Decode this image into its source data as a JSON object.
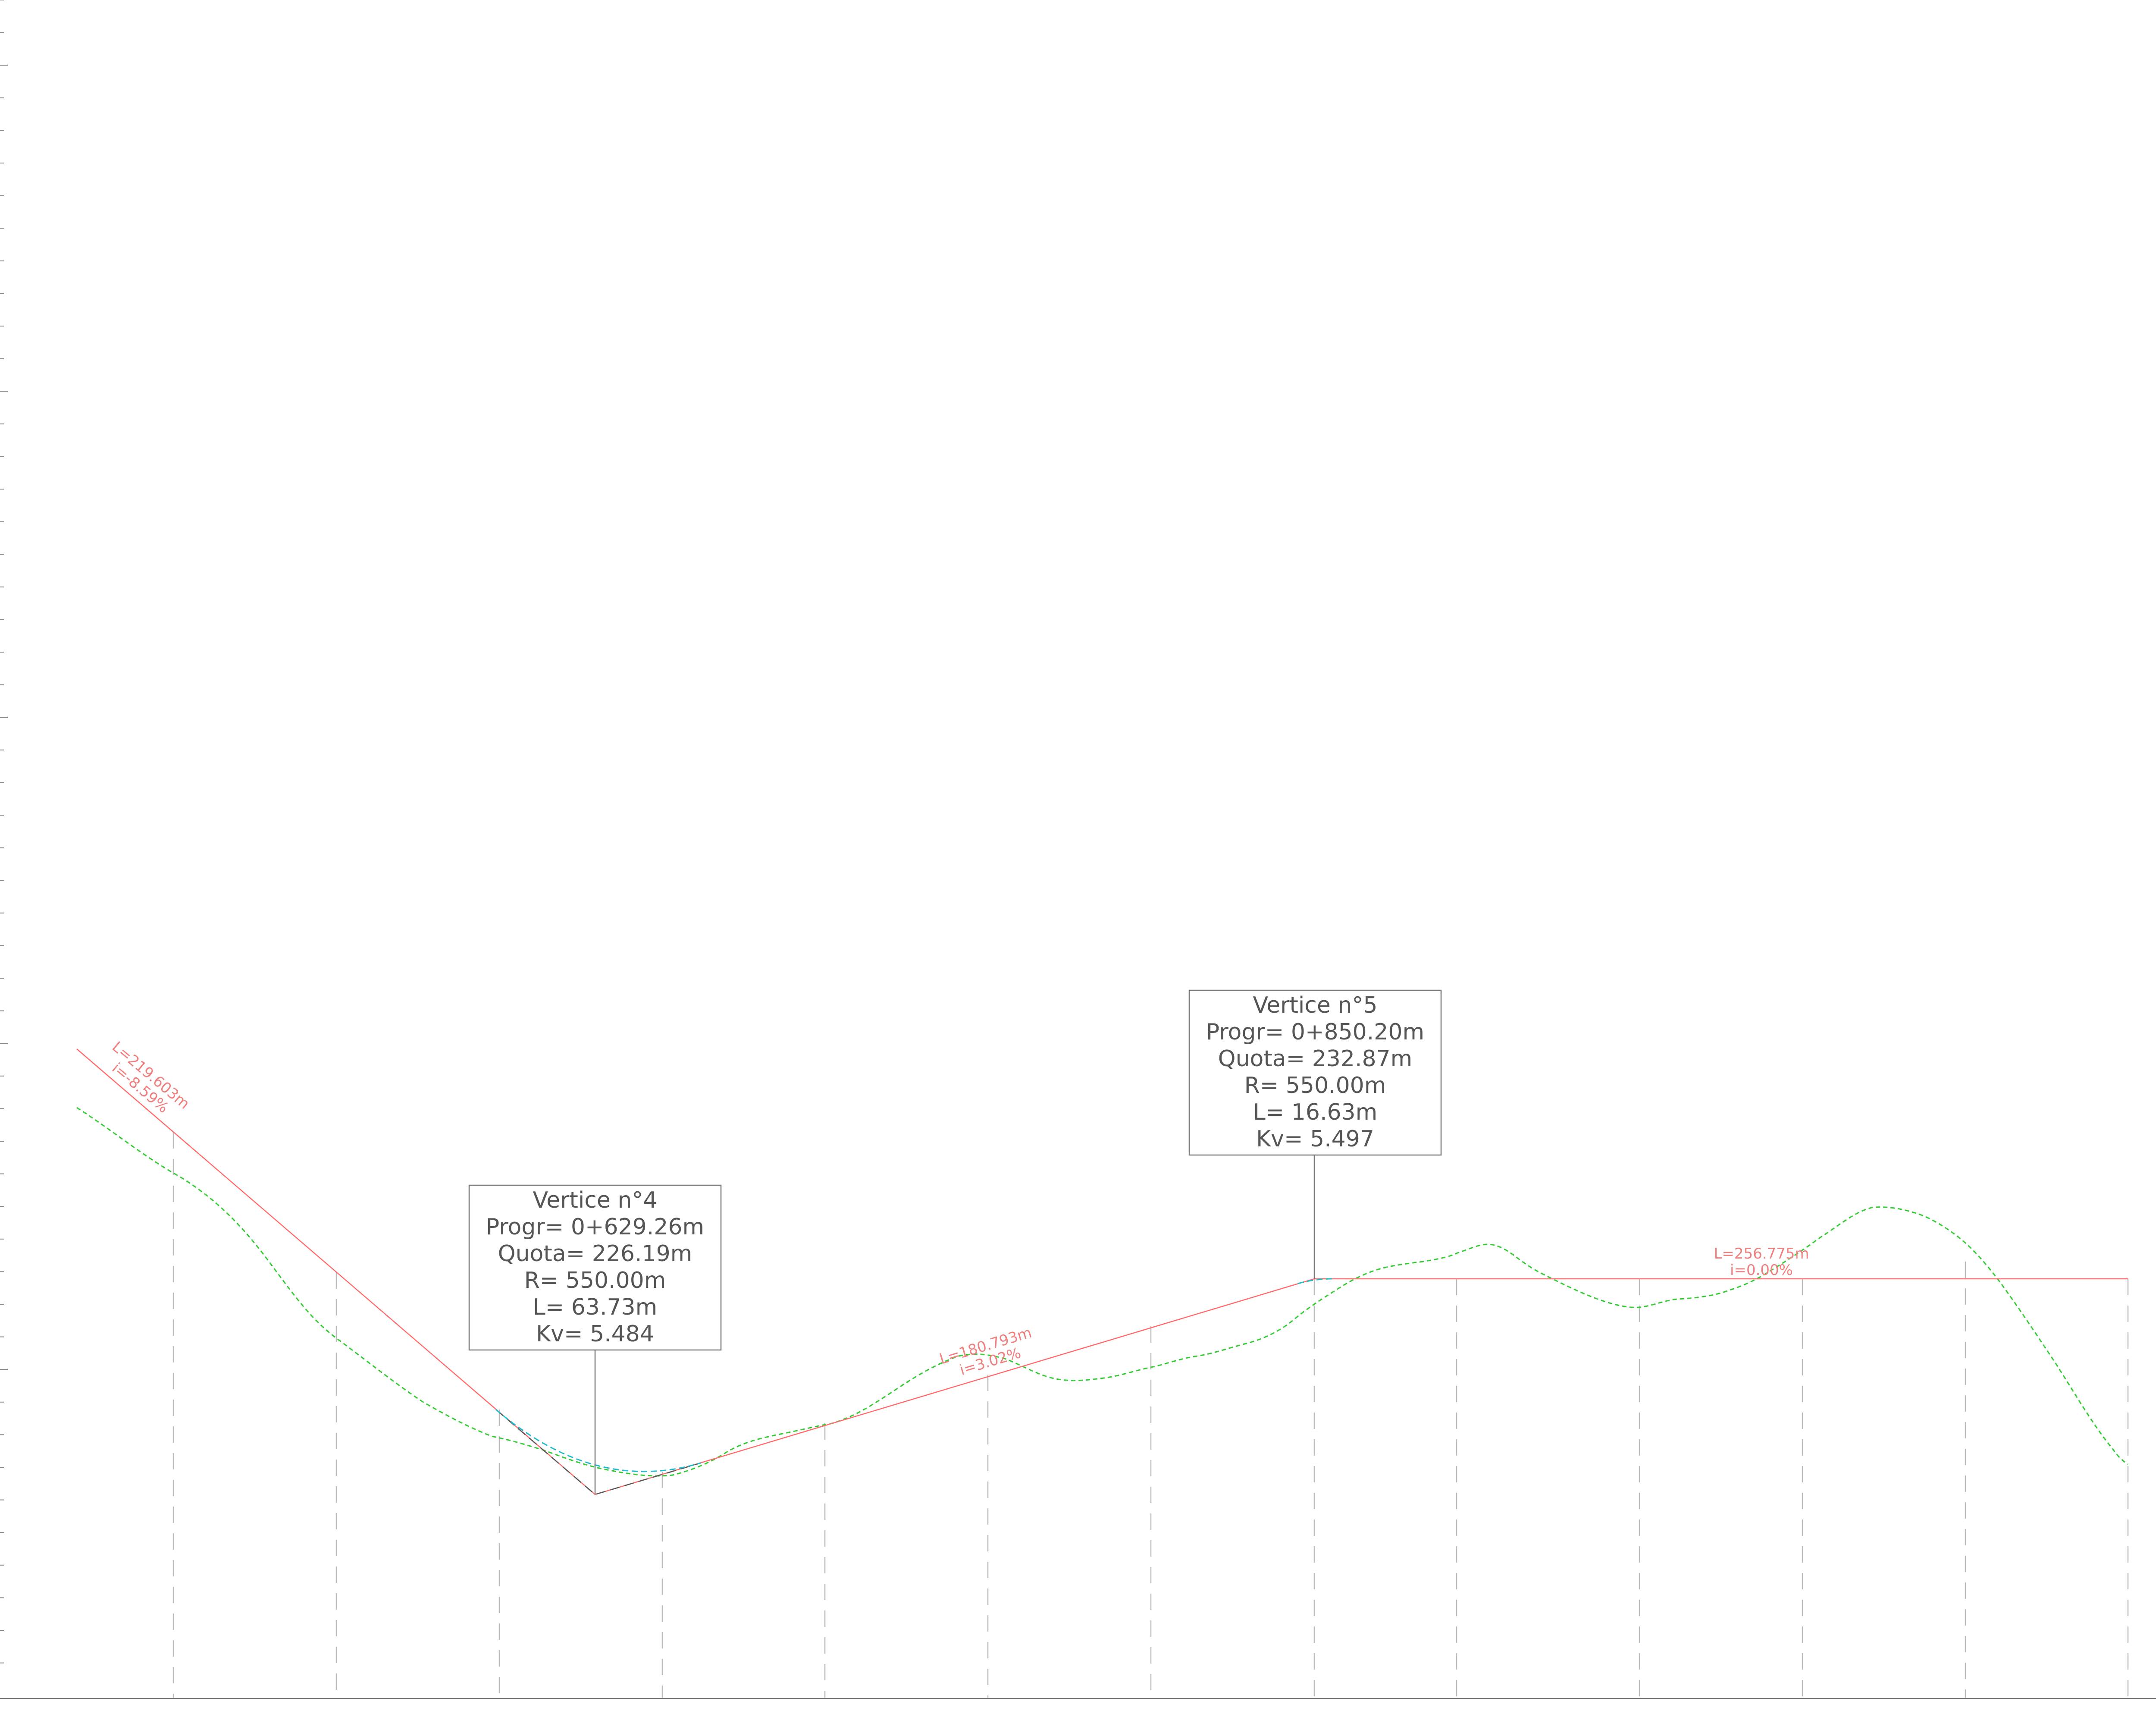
{
  "colors": {
    "grade_line": "#ff6b6b",
    "terrain_line": "#33cc33",
    "vertical_curve": "#22bbcc",
    "tangent_extension": "#555555",
    "station_lines": "#bbbbbb",
    "box_border": "#777777",
    "box_text": "#555555",
    "segment_text": "#f08080",
    "ruler": "#888888"
  },
  "vertices": [
    {
      "id": "vertex-4",
      "lines": [
        "Vertice n°4",
        "Progr=  0+629.26m",
        "Quota=  226.19m",
        "R=  550.00m",
        "L=  63.73m",
        "Kv=  5.484"
      ]
    },
    {
      "id": "vertex-5",
      "lines": [
        "Vertice n°5",
        "Progr=  0+850.20m",
        "Quota=  232.87m",
        "R=  550.00m",
        "L=  16.63m",
        "Kv=  5.497"
      ]
    }
  ],
  "segments": [
    {
      "id": "segment-1",
      "length": "L=219.603m",
      "slope": "i=-8.59%"
    },
    {
      "id": "segment-2",
      "length": "L=180.793m",
      "slope": "i=3.02%"
    },
    {
      "id": "segment-3",
      "length": "L=256.775m",
      "slope": "i=0.00%"
    }
  ]
}
